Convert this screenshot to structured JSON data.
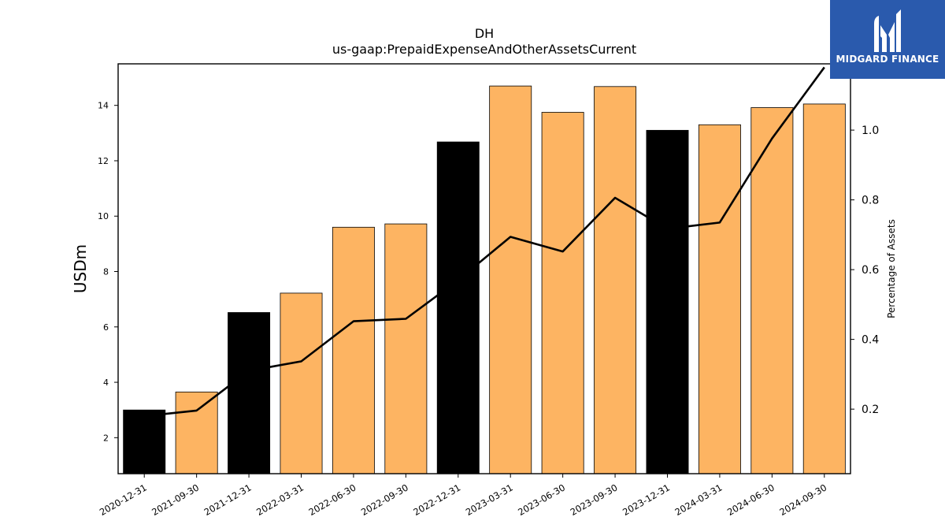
{
  "chart_data": {
    "type": "bar",
    "title": "DH",
    "subtitle": "us-gaap:PrepaidExpenseAndOtherAssetsCurrent",
    "ylabel": "USDm",
    "y2label": "Percentage of Assets",
    "categories": [
      "2020-12-31",
      "2021-09-30",
      "2021-12-31",
      "2022-03-31",
      "2022-06-30",
      "2022-09-30",
      "2022-12-31",
      "2023-03-31",
      "2023-06-30",
      "2023-09-30",
      "2023-12-31",
      "2024-03-31",
      "2024-06-30",
      "2024-09-30"
    ],
    "series": [
      {
        "type": "bar",
        "axis": "left",
        "values": [
          3.0,
          3.65,
          6.52,
          7.22,
          9.6,
          9.72,
          12.68,
          14.7,
          13.75,
          14.68,
          13.1,
          13.3,
          13.92,
          14.05
        ],
        "bar_colors": [
          "#000000",
          "#fdb462",
          "#000000",
          "#fdb462",
          "#fdb462",
          "#fdb462",
          "#000000",
          "#fdb462",
          "#fdb462",
          "#fdb462",
          "#000000",
          "#fdb462",
          "#fdb462",
          "#fdb462"
        ]
      },
      {
        "type": "line",
        "axis": "right",
        "color": "#000000",
        "values": [
          0.18,
          0.196,
          0.31,
          0.337,
          0.452,
          0.459,
          0.57,
          0.694,
          0.652,
          0.806,
          0.717,
          0.735,
          0.976,
          1.18
        ]
      }
    ],
    "ylim": [
      0.7,
      15.5
    ],
    "yticks": [
      2,
      4,
      6,
      8,
      10,
      12,
      14
    ],
    "y2lim": [
      0.015,
      1.19
    ],
    "y2ticks": [
      0.2,
      0.4,
      0.6,
      0.8,
      1.0
    ],
    "y2tick_labels": [
      "0.2",
      "0.4",
      "0.6",
      "0.8",
      "1.0"
    ],
    "grid": false,
    "legend": "none"
  },
  "logo": {
    "text": "MIDGARD FINANCE",
    "background": "#2a5aad",
    "icon": "midgard-m-logo-icon"
  }
}
